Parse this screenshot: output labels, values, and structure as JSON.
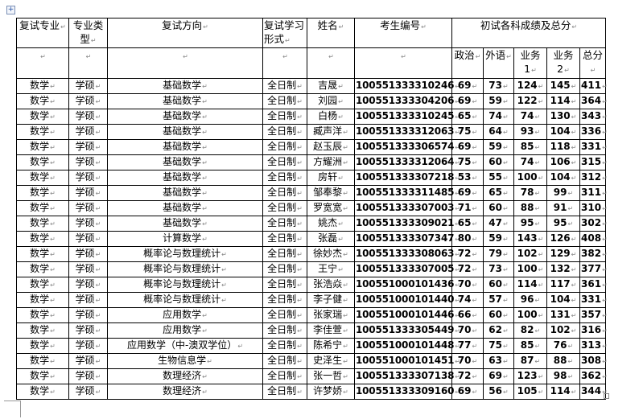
{
  "headers": {
    "major": "复试专业",
    "type": "专业类型",
    "direction": "复试方向",
    "study_form": "复试学习形式",
    "name": "姓名",
    "exam_id": "考生编号",
    "scores_group": "初试各科成绩及总分",
    "politics": "政治",
    "foreign": "外语",
    "subject1": "业务1",
    "subject2": "业务2",
    "total": "总分"
  },
  "rows": [
    {
      "major": "数学",
      "type": "学硕",
      "direction": "基础数学",
      "form": "全日制",
      "name": "吉晟",
      "id": "100551333310246",
      "pol": "69",
      "fl": "73",
      "s1": "124",
      "s2": "145",
      "total": "411"
    },
    {
      "major": "数学",
      "type": "学硕",
      "direction": "基础数学",
      "form": "全日制",
      "name": "刘园",
      "id": "100551333304206",
      "pol": "69",
      "fl": "59",
      "s1": "122",
      "s2": "114",
      "total": "364"
    },
    {
      "major": "数学",
      "type": "学硕",
      "direction": "基础数学",
      "form": "全日制",
      "name": "白杨",
      "id": "100551333310245",
      "pol": "65",
      "fl": "74",
      "s1": "74",
      "s2": "130",
      "total": "343"
    },
    {
      "major": "数学",
      "type": "学硕",
      "direction": "基础数学",
      "form": "全日制",
      "name": "臧声洋",
      "id": "100551333312063",
      "pol": "75",
      "fl": "64",
      "s1": "93",
      "s2": "104",
      "total": "336"
    },
    {
      "major": "数学",
      "type": "学硕",
      "direction": "基础数学",
      "form": "全日制",
      "name": "赵玉辰",
      "id": "100551333306574",
      "pol": "69",
      "fl": "59",
      "s1": "85",
      "s2": "118",
      "total": "331"
    },
    {
      "major": "数学",
      "type": "学硕",
      "direction": "基础数学",
      "form": "全日制",
      "name": "方耀洲",
      "id": "100551333312064",
      "pol": "75",
      "fl": "60",
      "s1": "74",
      "s2": "106",
      "total": "315"
    },
    {
      "major": "数学",
      "type": "学硕",
      "direction": "基础数学",
      "form": "全日制",
      "name": "房轩",
      "id": "100551333307218",
      "pol": "53",
      "fl": "55",
      "s1": "100",
      "s2": "104",
      "total": "312"
    },
    {
      "major": "数学",
      "type": "学硕",
      "direction": "基础数学",
      "form": "全日制",
      "name": "邹奉黎",
      "id": "100551333311485",
      "pol": "69",
      "fl": "65",
      "s1": "78",
      "s2": "99",
      "total": "311"
    },
    {
      "major": "数学",
      "type": "学硕",
      "direction": "基础数学",
      "form": "全日制",
      "name": "罗宽宽",
      "id": "100551333307003",
      "pol": "71",
      "fl": "60",
      "s1": "88",
      "s2": "91",
      "total": "310"
    },
    {
      "major": "数学",
      "type": "学硕",
      "direction": "基础数学",
      "form": "全日制",
      "name": "姚杰",
      "id": "100551333309021",
      "pol": "65",
      "fl": "47",
      "s1": "95",
      "s2": "95",
      "total": "302"
    },
    {
      "major": "数学",
      "type": "学硕",
      "direction": "计算数学",
      "form": "全日制",
      "name": "张磊",
      "id": "100551333307347",
      "pol": "80",
      "fl": "59",
      "s1": "143",
      "s2": "126",
      "total": "408"
    },
    {
      "major": "数学",
      "type": "学硕",
      "direction": "概率论与数理统计",
      "form": "全日制",
      "name": "徐妙杰",
      "id": "100551333308063",
      "pol": "72",
      "fl": "79",
      "s1": "102",
      "s2": "129",
      "total": "382"
    },
    {
      "major": "数学",
      "type": "学硕",
      "direction": "概率论与数理统计",
      "form": "全日制",
      "name": "王宁",
      "id": "100551333307005",
      "pol": "72",
      "fl": "73",
      "s1": "100",
      "s2": "132",
      "total": "377"
    },
    {
      "major": "数学",
      "type": "学硕",
      "direction": "概率论与数理统计",
      "form": "全日制",
      "name": "张浩焱",
      "id": "100551000101436",
      "pol": "70",
      "fl": "60",
      "s1": "114",
      "s2": "117",
      "total": "361"
    },
    {
      "major": "数学",
      "type": "学硕",
      "direction": "概率论与数理统计",
      "form": "全日制",
      "name": "李子健",
      "id": "100551000101440",
      "pol": "74",
      "fl": "57",
      "s1": "96",
      "s2": "104",
      "total": "331"
    },
    {
      "major": "数学",
      "type": "学硕",
      "direction": "应用数学",
      "form": "全日制",
      "name": "张家瑞",
      "id": "100551000101446",
      "pol": "66",
      "fl": "60",
      "s1": "100",
      "s2": "131",
      "total": "357"
    },
    {
      "major": "数学",
      "type": "学硕",
      "direction": "应用数学",
      "form": "全日制",
      "name": "李佳萱",
      "id": "100551333305449",
      "pol": "70",
      "fl": "62",
      "s1": "82",
      "s2": "102",
      "total": "316"
    },
    {
      "major": "数学",
      "type": "学硕",
      "direction": "应用数学（中-澳双学位）",
      "form": "全日制",
      "name": "陈希宁",
      "id": "100551000101448",
      "pol": "77",
      "fl": "75",
      "s1": "85",
      "s2": "76",
      "total": "313"
    },
    {
      "major": "数学",
      "type": "学硕",
      "direction": "生物信息学",
      "form": "全日制",
      "name": "史泽生",
      "id": "100551000101451",
      "pol": "70",
      "fl": "63",
      "s1": "87",
      "s2": "88",
      "total": "308"
    },
    {
      "major": "数学",
      "type": "学硕",
      "direction": "数理经济",
      "form": "全日制",
      "name": "张一哲",
      "id": "100551333307138",
      "pol": "72",
      "fl": "69",
      "s1": "123",
      "s2": "98",
      "total": "362"
    },
    {
      "major": "数学",
      "type": "学硕",
      "direction": "数理经济",
      "form": "全日制",
      "name": "许梦娇",
      "id": "100551333309160",
      "pol": "69",
      "fl": "56",
      "s1": "105",
      "s2": "114",
      "total": "344"
    }
  ]
}
